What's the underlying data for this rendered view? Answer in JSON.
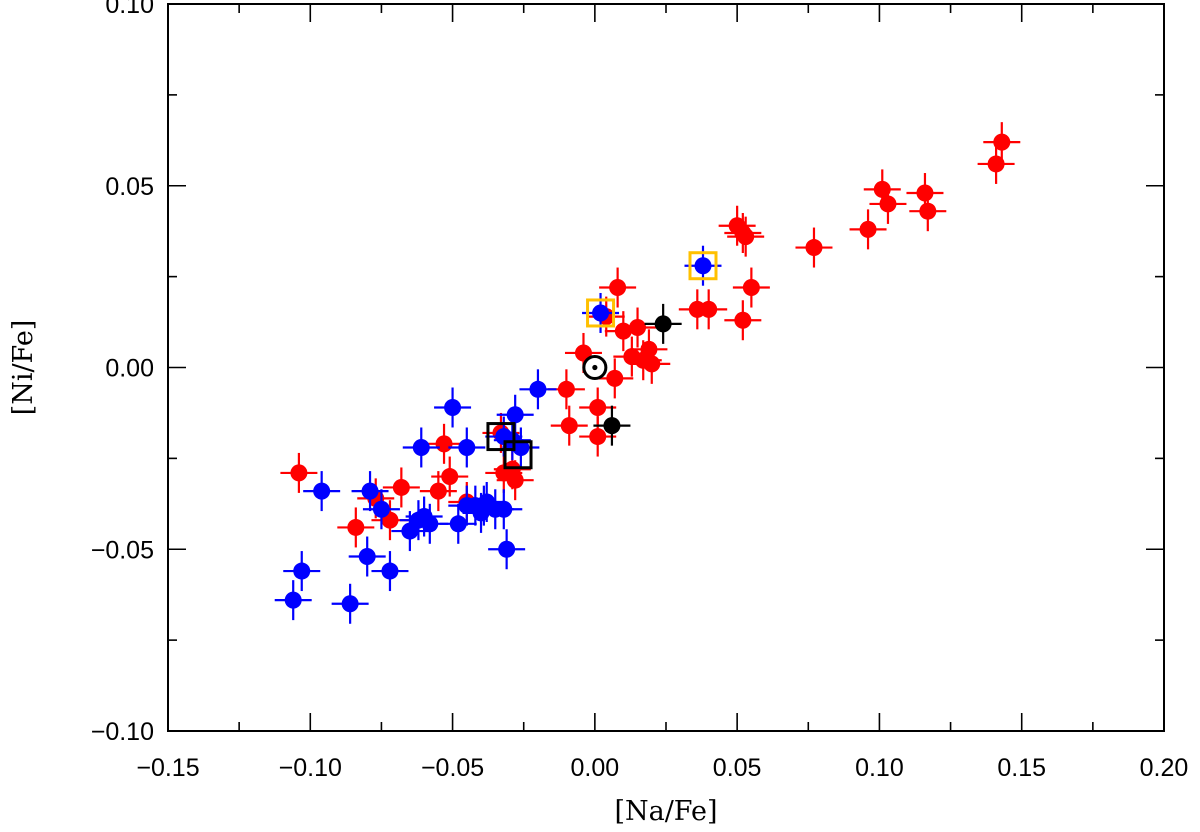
{
  "chart_data": {
    "type": "scatter",
    "title": "",
    "xlabel": "[Na/Fe]",
    "ylabel": "[Ni/Fe]",
    "xlim": [
      -0.15,
      0.2
    ],
    "ylim": [
      -0.1,
      0.1
    ],
    "x_major_ticks": [
      -0.15,
      -0.1,
      -0.05,
      0.0,
      0.05,
      0.1,
      0.15,
      0.2
    ],
    "x_tick_labels": [
      "−0.15",
      "−0.10",
      "−0.05",
      "0.00",
      "0.05",
      "0.10",
      "0.15",
      "0.20"
    ],
    "y_major_ticks": [
      -0.1,
      -0.05,
      0.0,
      0.05,
      0.1
    ],
    "y_tick_labels": [
      "−0.10",
      "−0.05",
      "0.00",
      "0.05",
      "0.10"
    ],
    "x_minor_step": 0.025,
    "y_minor_step": 0.025,
    "grid": false,
    "legend": "none",
    "error_bars": {
      "x": 0.0065,
      "y": 0.0055
    },
    "colors": {
      "red": "#ff0000",
      "blue": "#0000ff",
      "black": "#000000",
      "gold": "#ffc000"
    },
    "series": [
      {
        "color": "red",
        "points": [
          [
            -0.104,
            -0.029
          ],
          [
            -0.084,
            -0.044
          ],
          [
            -0.077,
            -0.036
          ],
          [
            -0.072,
            -0.042
          ],
          [
            -0.068,
            -0.033
          ],
          [
            -0.055,
            -0.034
          ],
          [
            -0.053,
            -0.021
          ],
          [
            -0.051,
            -0.03
          ],
          [
            -0.045,
            -0.037
          ],
          [
            -0.033,
            -0.018
          ],
          [
            -0.032,
            -0.029
          ],
          [
            -0.029,
            -0.028
          ],
          [
            -0.028,
            -0.031
          ],
          [
            -0.01,
            -0.006
          ],
          [
            -0.009,
            -0.016
          ],
          [
            -0.004,
            0.004
          ],
          [
            0.001,
            -0.011
          ],
          [
            0.001,
            -0.019
          ],
          [
            0.004,
            0.014
          ],
          [
            0.007,
            -0.003
          ],
          [
            0.008,
            0.022
          ],
          [
            0.01,
            0.01
          ],
          [
            0.013,
            0.003
          ],
          [
            0.015,
            0.011
          ],
          [
            0.017,
            0.002
          ],
          [
            0.019,
            0.005
          ],
          [
            0.02,
            0.001
          ],
          [
            0.036,
            0.016
          ],
          [
            0.04,
            0.016
          ],
          [
            0.05,
            0.039
          ],
          [
            0.052,
            0.037
          ],
          [
            0.052,
            0.013
          ],
          [
            0.053,
            0.036
          ],
          [
            0.055,
            0.022
          ],
          [
            0.077,
            0.033
          ],
          [
            0.096,
            0.038
          ],
          [
            0.101,
            0.049
          ],
          [
            0.103,
            0.045
          ],
          [
            0.116,
            0.048
          ],
          [
            0.117,
            0.043
          ],
          [
            0.141,
            0.056
          ],
          [
            0.143,
            0.062
          ]
        ]
      },
      {
        "color": "blue",
        "points": [
          [
            -0.106,
            -0.064
          ],
          [
            -0.103,
            -0.056
          ],
          [
            -0.096,
            -0.034
          ],
          [
            -0.086,
            -0.065
          ],
          [
            -0.08,
            -0.052
          ],
          [
            -0.079,
            -0.034
          ],
          [
            -0.075,
            -0.039
          ],
          [
            -0.072,
            -0.056
          ],
          [
            -0.065,
            -0.045
          ],
          [
            -0.062,
            -0.042
          ],
          [
            -0.061,
            -0.022
          ],
          [
            -0.06,
            -0.041
          ],
          [
            -0.058,
            -0.043
          ],
          [
            -0.05,
            -0.011
          ],
          [
            -0.048,
            -0.043
          ],
          [
            -0.045,
            -0.022
          ],
          [
            -0.045,
            -0.038
          ],
          [
            -0.042,
            -0.038
          ],
          [
            -0.04,
            -0.04
          ],
          [
            -0.039,
            -0.038
          ],
          [
            -0.038,
            -0.037
          ],
          [
            -0.035,
            -0.039
          ],
          [
            -0.032,
            -0.039
          ],
          [
            -0.032,
            -0.019
          ],
          [
            -0.031,
            -0.05
          ],
          [
            -0.029,
            -0.02
          ],
          [
            -0.028,
            -0.013
          ],
          [
            -0.026,
            -0.022
          ],
          [
            -0.02,
            -0.006
          ],
          [
            0.002,
            0.015
          ],
          [
            0.038,
            0.028
          ]
        ]
      },
      {
        "color": "black",
        "points": [
          [
            0.006,
            -0.016
          ],
          [
            0.024,
            0.012
          ]
        ]
      }
    ],
    "square_markers": [
      {
        "color": "black",
        "x": -0.033,
        "y": -0.019
      },
      {
        "color": "black",
        "x": -0.027,
        "y": -0.024
      },
      {
        "color": "gold",
        "x": 0.002,
        "y": 0.015
      },
      {
        "color": "gold",
        "x": 0.038,
        "y": 0.028
      }
    ],
    "sun_marker": {
      "x": 0.0,
      "y": 0.0
    }
  }
}
